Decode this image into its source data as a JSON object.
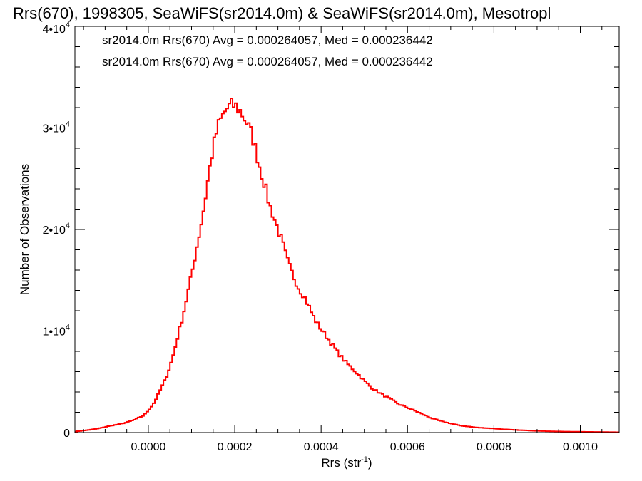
{
  "chart_data": {
    "type": "line",
    "title": "Rrs(670), 1998305, SeaWiFS(sr2014.0m) & SeaWiFS(sr2014.0m), Mesotropl",
    "xlabel_base": "Rrs (str",
    "xlabel_sup": "-1",
    "xlabel_close": ")",
    "ylabel": "Number of Observations",
    "xlim": [
      -0.00017,
      0.00109
    ],
    "ylim": [
      0,
      40000
    ],
    "x_ticks": [
      {
        "value": 0.0,
        "label": "0.0000"
      },
      {
        "value": 0.0002,
        "label": "0.0002"
      },
      {
        "value": 0.0004,
        "label": "0.0004"
      },
      {
        "value": 0.0006,
        "label": "0.0006"
      },
      {
        "value": 0.0008,
        "label": "0.0008"
      },
      {
        "value": 0.001,
        "label": "0.0010"
      }
    ],
    "y_ticks": [
      {
        "value": 0,
        "mant": "0",
        "exp": ""
      },
      {
        "value": 10000,
        "mant": "1•10",
        "exp": "4"
      },
      {
        "value": 20000,
        "mant": "2•10",
        "exp": "4"
      },
      {
        "value": 30000,
        "mant": "3•10",
        "exp": "4"
      },
      {
        "value": 40000,
        "mant": "4•10",
        "exp": "4"
      }
    ],
    "x_minor_step": 5e-05,
    "y_minor_step": 2000,
    "grid": false,
    "bin_width": 5e-06,
    "annotations": [
      {
        "text": "sr2014.0m Rrs(670) Avg = 0.000264057, Med = 0.000236442",
        "color": "#000000"
      },
      {
        "text": "sr2014.0m Rrs(670) Avg = 0.000264057, Med = 0.000236442",
        "color": "#ff0000"
      }
    ],
    "series": [
      {
        "color": "#ff0000",
        "x": [
          -0.00017,
          -0.00015,
          -0.00013,
          -0.00011,
          -9e-05,
          -7e-05,
          -5e-05,
          -3e-05,
          -1e-05,
          0.0,
          1e-05,
          2e-05,
          3e-05,
          4e-05,
          5e-05,
          6e-05,
          7e-05,
          8e-05,
          9e-05,
          0.0001,
          0.00011,
          0.00012,
          0.00013,
          0.00014,
          0.00015,
          0.00016,
          0.00017,
          0.00018,
          0.00019,
          0.0002,
          0.00021,
          0.00022,
          0.00023,
          0.00024,
          0.00025,
          0.00026,
          0.00027,
          0.00028,
          0.00029,
          0.0003,
          0.00031,
          0.00032,
          0.00033,
          0.00034,
          0.00035,
          0.00036,
          0.00037,
          0.00038,
          0.00039,
          0.0004,
          0.00042,
          0.00044,
          0.00046,
          0.00048,
          0.0005,
          0.00052,
          0.00054,
          0.00056,
          0.00058,
          0.0006,
          0.00062,
          0.00064,
          0.00066,
          0.00068,
          0.0007,
          0.00072,
          0.00074,
          0.00076,
          0.00078,
          0.0008,
          0.00082,
          0.00084,
          0.00086,
          0.00088,
          0.0009,
          0.00092,
          0.00094,
          0.00096,
          0.00098,
          0.001,
          0.00102,
          0.00104,
          0.00106,
          0.00108
        ],
        "y": [
          100,
          200,
          300,
          450,
          650,
          800,
          1000,
          1300,
          1700,
          2200,
          2700,
          3500,
          4400,
          5300,
          6500,
          8000,
          9800,
          11500,
          13500,
          15500,
          17800,
          20000,
          22500,
          25500,
          28000,
          30000,
          31000,
          31800,
          32200,
          32200,
          31800,
          31200,
          30300,
          29300,
          27600,
          25800,
          24300,
          22500,
          21300,
          20000,
          18800,
          17200,
          16000,
          15000,
          14100,
          13500,
          12600,
          11600,
          10800,
          10200,
          9000,
          7800,
          6800,
          6000,
          5100,
          4300,
          3800,
          3300,
          2800,
          2450,
          2100,
          1700,
          1350,
          1100,
          900,
          700,
          600,
          500,
          450,
          400,
          330,
          280,
          240,
          200,
          170,
          140,
          120,
          100,
          90,
          80,
          70,
          60,
          50,
          40
        ]
      }
    ]
  }
}
